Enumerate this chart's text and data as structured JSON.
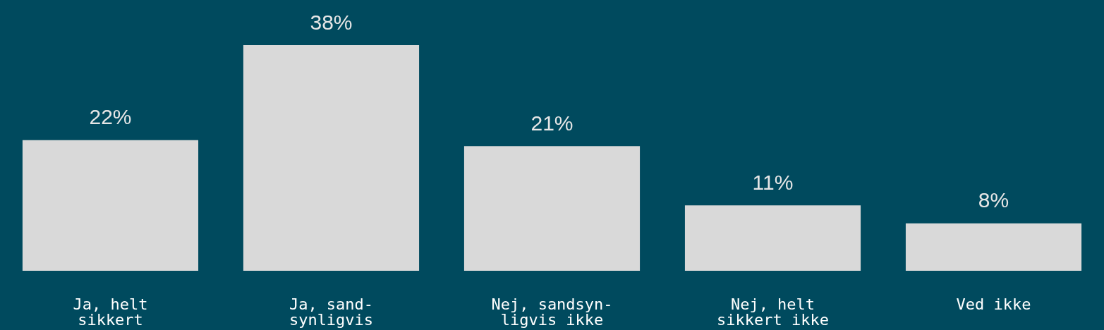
{
  "chart_data": {
    "type": "bar",
    "categories": [
      "Ja, helt\nsikkert",
      "Ja, sand-\nsynligvis",
      "Nej, sandsyn-\nligvis ikke",
      "Nej, helt\nsikkert ikke",
      "Ved ikke"
    ],
    "values": [
      22,
      38,
      21,
      11,
      8
    ],
    "value_labels": [
      "22%",
      "38%",
      "21%",
      "11%",
      "8%"
    ],
    "color": "#d9d9d9"
  }
}
